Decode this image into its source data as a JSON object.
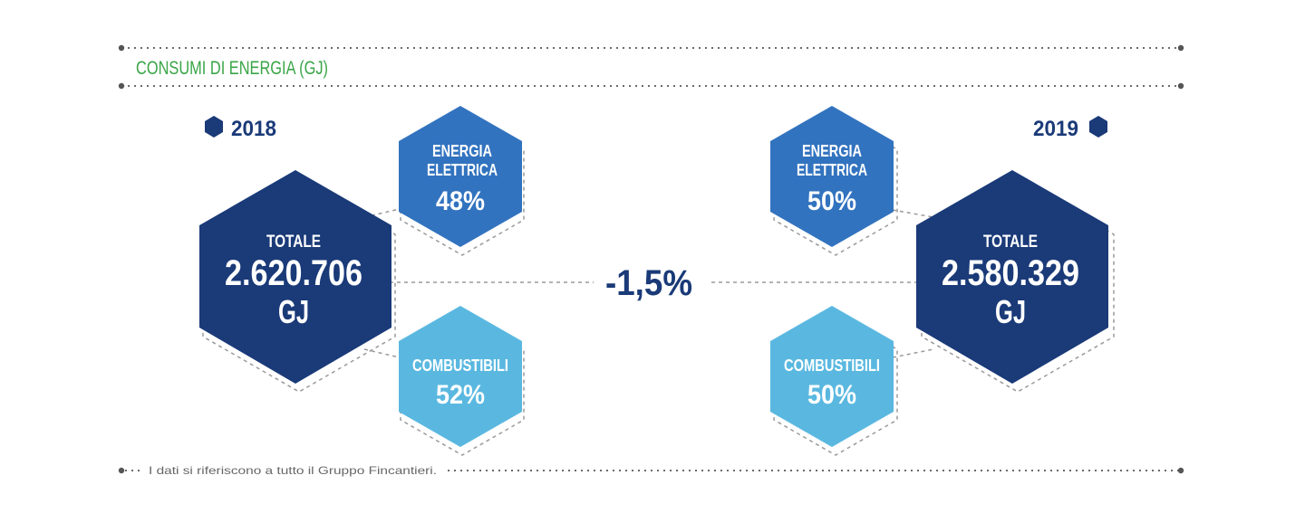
{
  "header": {
    "title": "CONSUMI DI ENERGIA (GJ)"
  },
  "left": {
    "year": "2018",
    "total_label": "TOTALE",
    "total_value": "2.620.706",
    "total_unit": "GJ",
    "electric_label_1": "ENERGIA",
    "electric_label_2": "ELETTRICA",
    "electric_pct": "48%",
    "fuel_label": "COMBUSTIBILI",
    "fuel_pct": "52%"
  },
  "right": {
    "year": "2019",
    "total_label": "TOTALE",
    "total_value": "2.580.329",
    "total_unit": "GJ",
    "electric_label_1": "ENERGIA",
    "electric_label_2": "ELETTRICA",
    "electric_pct": "50%",
    "fuel_label": "COMBUSTIBILI",
    "fuel_pct": "50%"
  },
  "delta": {
    "value": "-1,5%"
  },
  "footer": {
    "note": "I dati si riferiscono a tutto il Gruppo Fincantieri."
  },
  "colors": {
    "title_green": "#3aa547",
    "dark_navy": "#1a3a78",
    "mid_blue": "#3273bf",
    "light_blue": "#5ab8e0",
    "dotted_gray": "#6b6b6b"
  }
}
